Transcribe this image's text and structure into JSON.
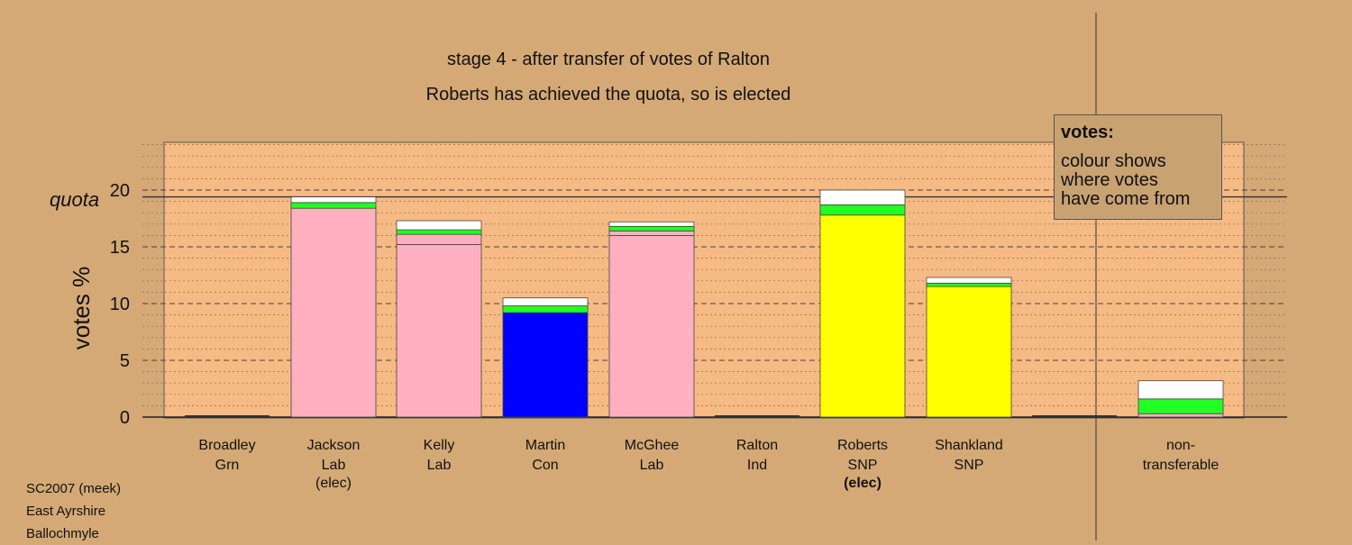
{
  "title_line1": "stage 4 - after transfer of votes of Ralton",
  "title_line2": "Roberts has achieved the quota, so is elected",
  "legend": {
    "title": "votes:",
    "lines": [
      "colour shows",
      "where votes",
      "have come from"
    ]
  },
  "footer": [
    "SC2007 (meek)",
    "East Ayrshire",
    "Ballochmyle"
  ],
  "quota_label": "quota",
  "colors": {
    "background": "#d4a975",
    "plot_area": "#f6ba84",
    "Lab": "#ffb0c0",
    "Con": "#0000ff",
    "SNP": "#ffff00",
    "transfer_green": "#22ff22",
    "transfer_white": "#ffffff"
  },
  "chart_data": {
    "type": "bar",
    "stacked": true,
    "ylabel": "votes %",
    "ylim": [
      0,
      24
    ],
    "yticks": [
      0,
      5,
      10,
      15,
      20
    ],
    "quota": 19.4,
    "grid": true,
    "categories": [
      {
        "name": "Broadley",
        "party": "Grn",
        "note": ""
      },
      {
        "name": "Jackson",
        "party": "Lab",
        "note": "(elec)"
      },
      {
        "name": "Kelly",
        "party": "Lab",
        "note": ""
      },
      {
        "name": "Martin",
        "party": "Con",
        "note": ""
      },
      {
        "name": "McGhee",
        "party": "Lab",
        "note": ""
      },
      {
        "name": "Ralton",
        "party": "Ind",
        "note": ""
      },
      {
        "name": "Roberts",
        "party": "SNP",
        "note": "(elec)"
      },
      {
        "name": "Shankland",
        "party": "SNP",
        "note": ""
      },
      {
        "name": "",
        "party": "",
        "note": ""
      },
      {
        "name": "non-",
        "party": "transferable",
        "note": ""
      }
    ],
    "bars": [
      [],
      [
        {
          "c": "Lab",
          "v": 18.4
        },
        {
          "c": "transfer_green",
          "v": 0.5
        },
        {
          "c": "transfer_white",
          "v": 0.5
        }
      ],
      [
        {
          "c": "Lab",
          "v": 15.2
        },
        {
          "c": "Lab",
          "v": 0.9
        },
        {
          "c": "transfer_green",
          "v": 0.4
        },
        {
          "c": "transfer_white",
          "v": 0.8
        }
      ],
      [
        {
          "c": "Con",
          "v": 9.2
        },
        {
          "c": "transfer_green",
          "v": 0.6
        },
        {
          "c": "transfer_white",
          "v": 0.7
        }
      ],
      [
        {
          "c": "Lab",
          "v": 16.0
        },
        {
          "c": "Lab",
          "v": 0.4
        },
        {
          "c": "transfer_green",
          "v": 0.4
        },
        {
          "c": "transfer_white",
          "v": 0.4
        }
      ],
      [],
      [
        {
          "c": "SNP",
          "v": 17.8
        },
        {
          "c": "transfer_green",
          "v": 0.9
        },
        {
          "c": "transfer_white",
          "v": 1.3
        }
      ],
      [
        {
          "c": "SNP",
          "v": 11.5
        },
        {
          "c": "transfer_green",
          "v": 0.3
        },
        {
          "c": "transfer_white",
          "v": 0.5
        }
      ],
      [],
      [
        {
          "c": "Lab",
          "v": 0.3
        },
        {
          "c": "transfer_green",
          "v": 1.3
        },
        {
          "c": "transfer_white",
          "v": 1.6
        }
      ]
    ]
  }
}
